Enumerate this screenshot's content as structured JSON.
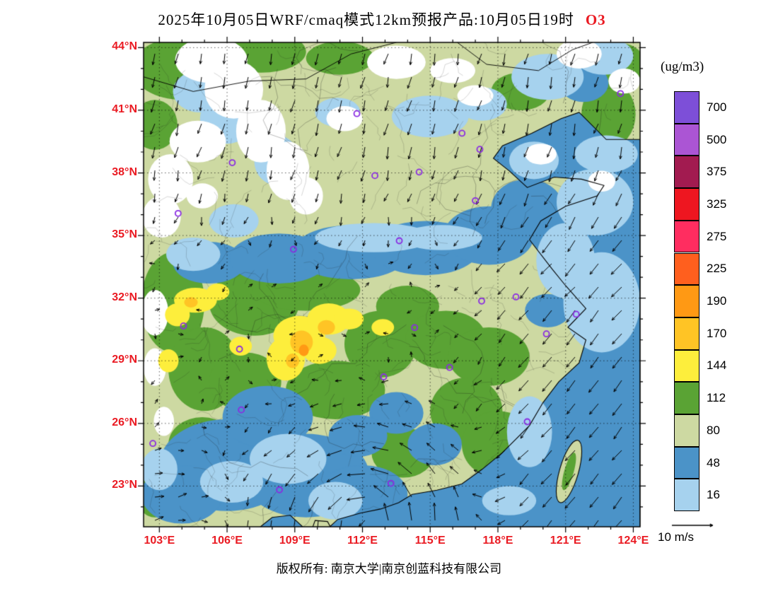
{
  "title": {
    "text": "2025年10月05日WRF/cmaq模式12km预报产品:10月05日19时",
    "species": "O3",
    "species_color": "#ea1a22"
  },
  "legend": {
    "unit": "(ug/m3)",
    "boxes": [
      {
        "label": "700",
        "color": "#7d4fd8"
      },
      {
        "label": "500",
        "color": "#ab55d4"
      },
      {
        "label": "375",
        "color": "#a21b50"
      },
      {
        "label": "325",
        "color": "#ee1620"
      },
      {
        "label": "275",
        "color": "#ff2d60"
      },
      {
        "label": "225",
        "color": "#ff5f1e"
      },
      {
        "label": "190",
        "color": "#ff9914"
      },
      {
        "label": "170",
        "color": "#ffc425"
      },
      {
        "label": "144",
        "color": "#fdee3c"
      },
      {
        "label": "112",
        "color": "#5aa334"
      },
      {
        "label": "80",
        "color": "#cdd9a2"
      },
      {
        "label": "48",
        "color": "#4b93c8"
      },
      {
        "label": "16",
        "color": "#a6d2ee"
      }
    ]
  },
  "axes": {
    "label_color": "#ea1a22",
    "lat_ticks": [
      {
        "label": "44°N",
        "deg": 44
      },
      {
        "label": "41°N",
        "deg": 41
      },
      {
        "label": "38°N",
        "deg": 38
      },
      {
        "label": "35°N",
        "deg": 35
      },
      {
        "label": "32°N",
        "deg": 32
      },
      {
        "label": "29°N",
        "deg": 29
      },
      {
        "label": "26°N",
        "deg": 26
      },
      {
        "label": "23°N",
        "deg": 23
      }
    ],
    "lon_ticks": [
      {
        "label": "103°E",
        "deg": 103
      },
      {
        "label": "106°E",
        "deg": 106
      },
      {
        "label": "109°E",
        "deg": 109
      },
      {
        "label": "112°E",
        "deg": 112
      },
      {
        "label": "115°E",
        "deg": 115
      },
      {
        "label": "118°E",
        "deg": 118
      },
      {
        "label": "121°E",
        "deg": 121
      },
      {
        "label": "124°E",
        "deg": 124
      }
    ]
  },
  "wind_legend": {
    "label": "10 m/s"
  },
  "footer": {
    "text": "版权所有: 南京大学|南京创蓝科技有限公司"
  },
  "map": {
    "lon_min": 102.3,
    "lon_max": 124.3,
    "lat_min": 21.05,
    "lat_max": 44.25,
    "grid_step_deg": 3,
    "palette": {
      "W": "#ffffff",
      "LB": "#a6d2ee",
      "B": "#4b93c8",
      "SG": "#cdd9a2",
      "G": "#5aa334",
      "Y": "#fdee3c",
      "GD": "#ffc425",
      "O": "#ff9914"
    },
    "base": "SG",
    "sea": "B",
    "station_marker_color": "#8a2be2",
    "stations": [
      [
        116.41,
        39.9
      ],
      [
        117.2,
        39.13
      ],
      [
        114.51,
        38.04
      ],
      [
        112.55,
        37.87
      ],
      [
        111.75,
        40.84
      ],
      [
        123.43,
        41.8
      ],
      [
        113.63,
        34.75
      ],
      [
        117.0,
        36.67
      ],
      [
        108.94,
        34.34
      ],
      [
        103.83,
        36.06
      ],
      [
        106.23,
        38.49
      ],
      [
        104.07,
        30.67
      ],
      [
        106.55,
        29.56
      ],
      [
        106.63,
        26.65
      ],
      [
        102.71,
        25.04
      ],
      [
        108.32,
        22.82
      ],
      [
        113.26,
        23.13
      ],
      [
        112.94,
        28.23
      ],
      [
        114.31,
        30.59
      ],
      [
        115.86,
        28.68
      ],
      [
        117.28,
        31.86
      ],
      [
        118.8,
        32.06
      ],
      [
        121.47,
        31.23
      ],
      [
        120.15,
        30.29
      ],
      [
        119.3,
        26.08
      ]
    ],
    "coast": [
      [
        124.3,
        39.6
      ],
      [
        122.8,
        39.6
      ],
      [
        121.6,
        40.9
      ],
      [
        120.8,
        40.6
      ],
      [
        119.5,
        39.9
      ],
      [
        118.2,
        39.3
      ],
      [
        117.8,
        38.7
      ],
      [
        118.5,
        38.1
      ],
      [
        119.3,
        37.3
      ],
      [
        120.5,
        37.8
      ],
      [
        121.7,
        37.7
      ],
      [
        122.7,
        37.4
      ],
      [
        122.4,
        36.9
      ],
      [
        121.0,
        36.4
      ],
      [
        119.9,
        35.7
      ],
      [
        119.4,
        34.8
      ],
      [
        120.4,
        33.4
      ],
      [
        121.0,
        32.6
      ],
      [
        121.9,
        31.5
      ],
      [
        121.1,
        30.6
      ],
      [
        121.9,
        30.0
      ],
      [
        121.6,
        28.9
      ],
      [
        120.7,
        28.0
      ],
      [
        120.0,
        27.0
      ],
      [
        119.4,
        25.9
      ],
      [
        118.2,
        24.6
      ],
      [
        117.3,
        23.8
      ],
      [
        116.4,
        23.1
      ],
      [
        115.3,
        22.8
      ],
      [
        114.2,
        22.6
      ],
      [
        113.6,
        22.2
      ],
      [
        112.8,
        21.9
      ],
      [
        111.9,
        21.7
      ],
      [
        110.9,
        21.4
      ],
      [
        110.4,
        20.9
      ],
      [
        109.9,
        20.6
      ],
      [
        109.5,
        20.9
      ],
      [
        108.8,
        21.6
      ],
      [
        108.0,
        21.5
      ],
      [
        107.3,
        20.9
      ],
      [
        106.6,
        20.4
      ],
      [
        106.6,
        20.0
      ],
      [
        124.3,
        20.0
      ]
    ],
    "leizhou": [
      [
        109.9,
        21.35
      ],
      [
        110.45,
        21.3
      ],
      [
        110.65,
        20.9
      ],
      [
        110.4,
        20.3
      ],
      [
        109.85,
        20.3
      ],
      [
        109.75,
        20.9
      ]
    ],
    "taiwan": {
      "lon": 121.15,
      "lat": 23.7,
      "rx": 0.42,
      "ry": 1.55,
      "rot_deg": 16
    },
    "field_regions": {
      "land_green": [
        [
          104.0,
          43.0,
          2.2,
          1.5
        ],
        [
          107.5,
          43.8,
          2.0,
          1.0
        ],
        [
          102.8,
          40.3,
          1.0,
          1.2
        ],
        [
          111.0,
          43.5,
          1.5,
          0.8
        ],
        [
          103.6,
          31.8,
          1.4,
          2.4
        ],
        [
          105.0,
          28.6,
          1.6,
          2.0
        ],
        [
          107.2,
          31.8,
          2.0,
          1.6
        ],
        [
          109.5,
          32.4,
          2.4,
          1.0
        ],
        [
          106.8,
          28.0,
          1.6,
          1.4
        ],
        [
          110.8,
          27.6,
          2.2,
          1.4
        ],
        [
          112.8,
          29.8,
          1.6,
          1.6
        ],
        [
          114.0,
          31.6,
          1.4,
          1.0
        ],
        [
          115.7,
          30.0,
          1.8,
          1.4
        ],
        [
          117.6,
          29.2,
          1.8,
          1.4
        ],
        [
          116.6,
          26.6,
          1.6,
          1.6
        ],
        [
          118.0,
          25.0,
          1.6,
          1.6
        ],
        [
          113.8,
          24.6,
          1.4,
          1.2
        ],
        [
          122.9,
          40.8,
          1.2,
          1.6
        ],
        [
          123.5,
          43.2,
          1.0,
          1.0
        ],
        [
          104.9,
          25.0,
          1.5,
          1.3
        ],
        [
          102.8,
          22.5,
          0.8,
          1.0
        ],
        [
          119.0,
          41.9,
          1.3,
          0.9
        ]
      ],
      "land_blue": [
        [
          105.2,
          33.7,
          1.6,
          1.0
        ],
        [
          108.3,
          33.9,
          2.2,
          1.2
        ],
        [
          111.5,
          34.2,
          2.6,
          1.3
        ],
        [
          114.8,
          34.4,
          2.4,
          1.3
        ],
        [
          117.6,
          35.0,
          2.0,
          1.4
        ],
        [
          119.3,
          36.3,
          1.6,
          1.4
        ],
        [
          106.0,
          24.0,
          3.0,
          2.2
        ],
        [
          109.5,
          23.5,
          2.8,
          2.0
        ],
        [
          112.0,
          22.6,
          2.0,
          1.4
        ],
        [
          107.8,
          26.3,
          2.0,
          1.5
        ],
        [
          104.0,
          22.6,
          1.8,
          1.4
        ],
        [
          113.5,
          26.5,
          1.2,
          1.0
        ],
        [
          115.2,
          25.0,
          1.2,
          1.0
        ],
        [
          111.8,
          25.4,
          1.3,
          1.0
        ],
        [
          120.2,
          31.4,
          1.0,
          0.8
        ],
        [
          121.8,
          42.3,
          1.1,
          0.9
        ]
      ],
      "land_lightblue": [
        [
          112.5,
          34.9,
          2.6,
          0.7
        ],
        [
          115.5,
          34.9,
          1.8,
          0.6
        ],
        [
          115.0,
          40.7,
          1.7,
          1.0
        ],
        [
          117.3,
          41.3,
          1.1,
          0.8
        ],
        [
          120.2,
          42.6,
          1.6,
          1.1
        ],
        [
          122.7,
          43.6,
          1.3,
          0.9
        ],
        [
          106.3,
          35.7,
          1.1,
          0.8
        ],
        [
          104.5,
          34.1,
          1.2,
          0.8
        ],
        [
          108.7,
          24.3,
          1.7,
          1.2
        ],
        [
          106.2,
          23.2,
          1.4,
          1.0
        ],
        [
          110.8,
          22.3,
          1.2,
          0.9
        ],
        [
          103.0,
          23.8,
          0.8,
          1.0
        ],
        [
          106.0,
          40.6,
          1.2,
          1.2
        ],
        [
          108.2,
          38.6,
          1.0,
          1.2
        ],
        [
          104.8,
          41.9,
          1.2,
          1.0
        ],
        [
          110.9,
          40.9,
          1.0,
          0.7
        ]
      ],
      "land_white": [
        [
          105.3,
          43.4,
          1.6,
          1.1
        ],
        [
          106.3,
          42.0,
          1.3,
          1.4
        ],
        [
          107.5,
          40.0,
          1.1,
          1.5
        ],
        [
          108.7,
          38.1,
          0.95,
          1.4
        ],
        [
          109.5,
          36.9,
          0.75,
          0.9
        ],
        [
          104.7,
          39.5,
          1.25,
          1.0
        ],
        [
          103.5,
          37.7,
          1.0,
          1.2
        ],
        [
          103.1,
          35.9,
          0.85,
          1.0
        ],
        [
          111.2,
          40.6,
          0.8,
          0.6
        ],
        [
          102.8,
          31.3,
          0.6,
          1.1
        ],
        [
          102.8,
          28.7,
          0.5,
          0.9
        ],
        [
          103.2,
          26.1,
          0.45,
          0.7
        ],
        [
          104.9,
          36.9,
          0.7,
          0.6
        ],
        [
          117.0,
          41.7,
          0.8,
          0.5
        ],
        [
          121.6,
          43.7,
          1.0,
          0.7
        ],
        [
          123.6,
          42.4,
          0.7,
          0.6
        ],
        [
          113.5,
          43.3,
          1.3,
          0.8
        ],
        [
          116.0,
          42.9,
          1.0,
          0.6
        ]
      ],
      "sea_lightblue": [
        [
          119.4,
          25.6,
          1.0,
          1.7
        ],
        [
          122.6,
          31.8,
          1.7,
          2.4
        ],
        [
          121.0,
          33.8,
          1.3,
          1.8
        ],
        [
          122.3,
          36.6,
          1.7,
          1.6
        ],
        [
          119.6,
          38.6,
          1.1,
          0.9
        ],
        [
          122.8,
          38.9,
          1.4,
          0.9
        ],
        [
          118.5,
          22.3,
          1.2,
          0.7
        ]
      ],
      "sea_white": [
        [
          122.6,
          37.6,
          0.6,
          0.5
        ],
        [
          119.9,
          38.9,
          0.7,
          0.5
        ]
      ],
      "yellow": [
        [
          109.2,
          30.2,
          1.15,
          0.95
        ],
        [
          110.5,
          31.0,
          0.95,
          0.75
        ],
        [
          108.6,
          29.1,
          0.85,
          1.05
        ],
        [
          110.1,
          29.5,
          0.75,
          0.65
        ],
        [
          111.4,
          31.0,
          0.65,
          0.5
        ],
        [
          104.6,
          31.9,
          0.95,
          0.6
        ],
        [
          103.8,
          31.2,
          0.55,
          0.55
        ],
        [
          106.6,
          29.7,
          0.5,
          0.45
        ],
        [
          103.4,
          29.0,
          0.45,
          0.55
        ],
        [
          112.9,
          30.6,
          0.5,
          0.4
        ],
        [
          105.6,
          32.3,
          0.5,
          0.4
        ]
      ],
      "gold": [
        [
          109.3,
          29.9,
          0.5,
          0.55
        ],
        [
          110.4,
          30.6,
          0.38,
          0.35
        ],
        [
          104.4,
          31.8,
          0.3,
          0.25
        ],
        [
          108.9,
          29.0,
          0.3,
          0.35
        ]
      ],
      "orange": [
        [
          109.4,
          29.5,
          0.22,
          0.28
        ]
      ]
    },
    "borders_north": [
      [
        [
          102.3,
          42.6
        ],
        [
          104.5,
          41.9
        ],
        [
          107.0,
          42.4
        ],
        [
          109.5,
          42.5
        ],
        [
          111.5,
          43.7
        ],
        [
          113.5,
          44.25
        ]
      ],
      [
        [
          116.2,
          44.25
        ],
        [
          117.5,
          43.2
        ],
        [
          119.8,
          42.9
        ],
        [
          121.3,
          43.9
        ],
        [
          122.2,
          44.25
        ]
      ]
    ],
    "cyclone": {
      "lon": 112.2,
      "lat": 21.2
    }
  }
}
